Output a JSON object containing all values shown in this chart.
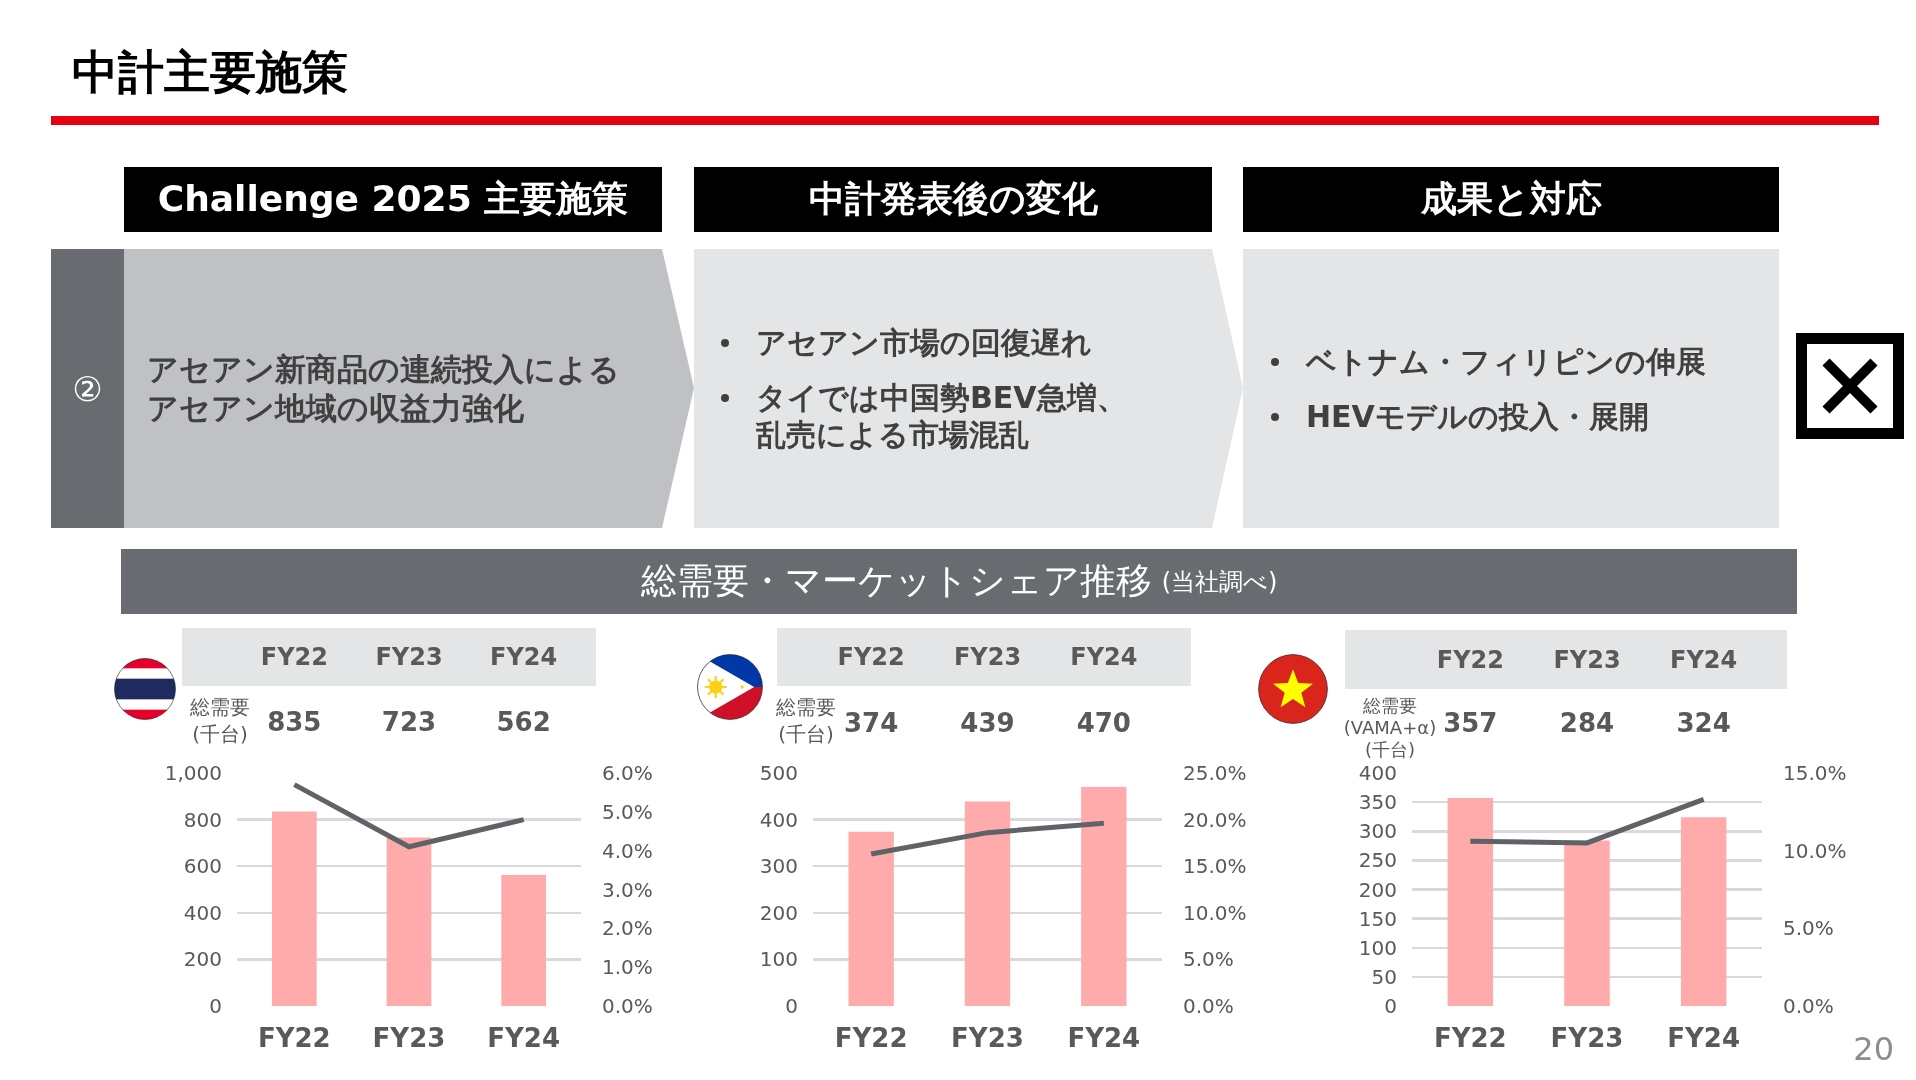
{
  "chart_data": [
    {
      "type": "other",
      "title": "中計主要施策",
      "annotations": [
        "Challenge 2025 主要施策",
        "中計発表後の変化",
        "成果と対応",
        "②",
        "アセアン新商品の連続投入によるアセアン地域の収益力強化",
        "アセアン市場の回復遅れ",
        "タイでは中国勢BEV急増、乱売による市場混乱",
        "ベトナム・フィリピンの伸展",
        "HEVモデルの投入・展開",
        "総需要・マーケットシェア推移",
        "(当社調べ)",
        "20"
      ]
    },
    {
      "type": "bar",
      "categories": [
        "FY22",
        "FY23",
        "FY24"
      ],
      "series": [
        {
          "color": "#ffaaab",
          "values": [
            835,
            723,
            562
          ],
          "value_labels": [
            "835",
            "723",
            "562"
          ]
        },
        {
          "type": "line",
          "color": "#5f6368",
          "axis": "y2",
          "values": [
            5.7,
            4.1,
            4.8
          ]
        }
      ],
      "ylim": [
        0,
        1000
      ],
      "yticks": [
        0,
        200,
        400,
        600,
        800,
        {
          "value": 1000,
          "label": "1,000"
        }
      ],
      "y2lim": [
        0,
        6
      ],
      "y2ticks": [
        {
          "value": 0,
          "label": "0.0%"
        },
        {
          "value": 1,
          "label": "1.0%"
        },
        {
          "value": 2,
          "label": "2.0%"
        },
        {
          "value": 3,
          "label": "3.0%"
        },
        {
          "value": 4,
          "label": "4.0%"
        },
        {
          "value": 5,
          "label": "5.0%"
        },
        {
          "value": 6,
          "label": "6.0%"
        }
      ],
      "grid": "y",
      "annotations": [
        "総需要\n(千台)"
      ]
    },
    {
      "type": "bar",
      "categories": [
        "FY22",
        "FY23",
        "FY24"
      ],
      "series": [
        {
          "color": "#ffaaab",
          "values": [
            374,
            439,
            470
          ],
          "value_labels": [
            "374",
            "439",
            "470"
          ]
        },
        {
          "type": "line",
          "color": "#5f6368",
          "axis": "y2",
          "values": [
            16.3,
            18.6,
            19.6
          ]
        }
      ],
      "ylim": [
        0,
        500
      ],
      "yticks": [
        0,
        100,
        200,
        300,
        400,
        500
      ],
      "y2lim": [
        0,
        25
      ],
      "y2ticks": [
        {
          "value": 0,
          "label": "0.0%"
        },
        {
          "value": 5,
          "label": "5.0%"
        },
        {
          "value": 10,
          "label": "10.0%"
        },
        {
          "value": 15,
          "label": "15.0%"
        },
        {
          "value": 20,
          "label": "20.0%"
        },
        {
          "value": 25,
          "label": "25.0%"
        }
      ],
      "grid": "y",
      "annotations": [
        "総需要\n(千台)"
      ]
    },
    {
      "type": "bar",
      "categories": [
        "FY22",
        "FY23",
        "FY24"
      ],
      "series": [
        {
          "color": "#ffaaab",
          "values": [
            357,
            284,
            324
          ],
          "value_labels": [
            "357",
            "284",
            "324"
          ]
        },
        {
          "type": "line",
          "color": "#5f6368",
          "axis": "y2",
          "values": [
            10.6,
            10.5,
            13.3
          ]
        }
      ],
      "ylim": [
        0,
        400
      ],
      "yticks": [
        0,
        50,
        100,
        150,
        200,
        250,
        300,
        350,
        400
      ],
      "y2lim": [
        0,
        15
      ],
      "y2ticks": [
        {
          "value": 0,
          "label": "0.0%"
        },
        {
          "value": 5,
          "label": "5.0%"
        },
        {
          "value": 10,
          "label": "10.0%"
        },
        {
          "value": 15,
          "label": "15.0%"
        }
      ],
      "grid": "y",
      "annotations": [
        "総需要\n(VAMA+α)\n(千台)"
      ]
    }
  ]
}
